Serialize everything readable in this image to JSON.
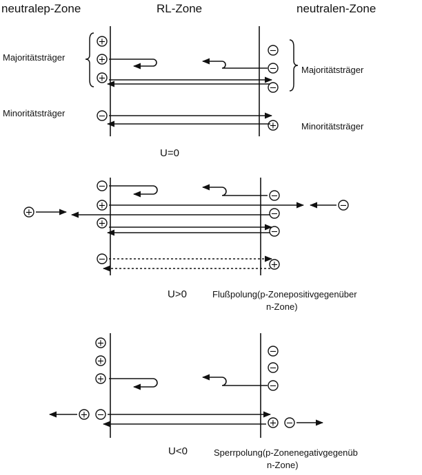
{
  "header": {
    "p_zone": "neutralep-Zone",
    "rl_zone": "RL-Zone",
    "n_zone": "neutralen-Zone"
  },
  "panel1": {
    "left_majority": "Majoritätsträger",
    "right_majority": "Majoritätsträger",
    "left_minority": "Minoritätsträger",
    "right_minority": "Minoritätsträger",
    "voltage": "U=0"
  },
  "panel2": {
    "voltage": "U>0",
    "desc_line1": "Flußpolung(p-Zonepositivgegenüber",
    "desc_line2": "n-Zone)"
  },
  "panel3": {
    "voltage": "U<0",
    "desc_line1": "Sperrpolung(p-Zonenegativgegenüb",
    "desc_line2": "n-Zone)"
  },
  "symbols": {
    "plus": "+",
    "minus": "−"
  }
}
